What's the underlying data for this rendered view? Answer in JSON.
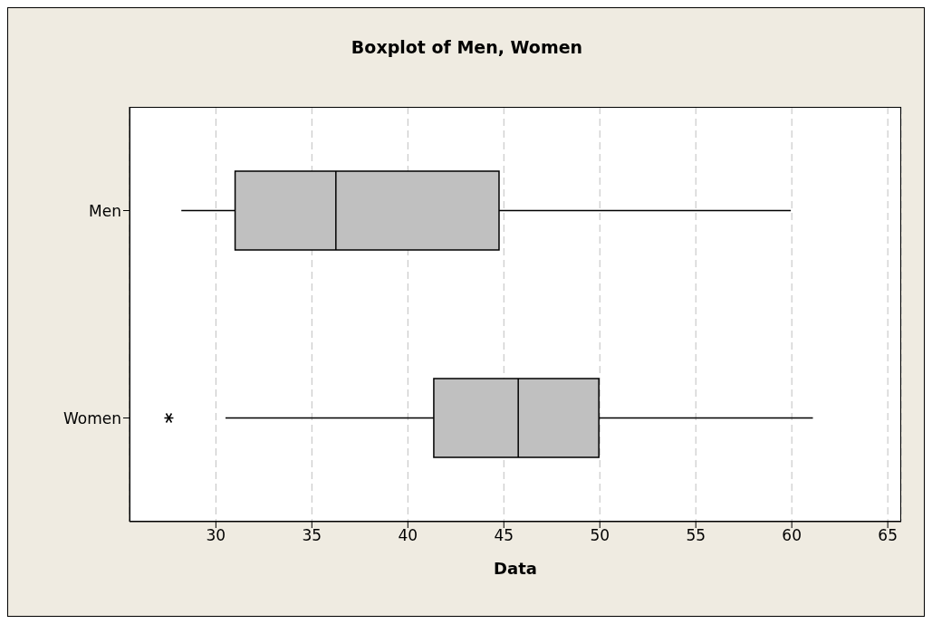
{
  "chart_data": {
    "type": "box",
    "title": "Boxplot of Men, Women",
    "xlabel": "Data",
    "orientation": "horizontal",
    "categories": [
      "Men",
      "Women"
    ],
    "color": "#c0c0c0",
    "boxes": [
      {
        "low": 28.2,
        "q1": 31.0,
        "median": 36.25,
        "q3": 44.75,
        "high": 59.95
      },
      {
        "low": 30.5,
        "q1": 41.35,
        "median": 45.75,
        "q3": 49.95,
        "high": 61.1,
        "outliers": [
          27.55
        ]
      }
    ],
    "xlim": [
      25.5,
      65.7
    ],
    "xticks": [
      30,
      35,
      40,
      45,
      50,
      55,
      60,
      65
    ],
    "grid": "x"
  }
}
